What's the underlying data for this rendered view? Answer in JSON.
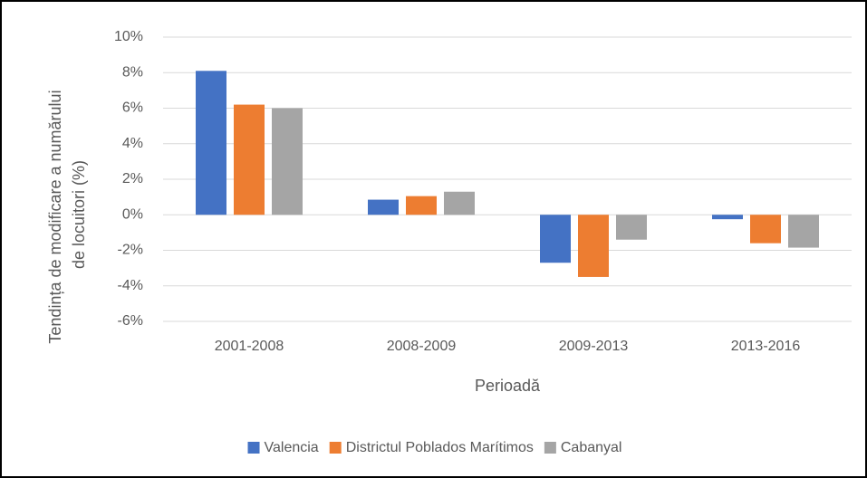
{
  "chart_data": {
    "type": "bar",
    "ylabel": [
      "Tendința de modificare a numărului",
      "de locuitori (%)"
    ],
    "xlabel": "Perioadă",
    "categories": [
      "2001-2008",
      "2008-2009",
      "2009-2013",
      "2013-2016"
    ],
    "series": [
      {
        "name": "Valencia",
        "color": "#4472c4",
        "values": [
          8.1,
          0.85,
          -2.7,
          -0.25
        ]
      },
      {
        "name": "Districtul Poblados Marítimos",
        "color": "#ed7d31",
        "values": [
          6.2,
          1.05,
          -3.5,
          -1.6
        ]
      },
      {
        "name": "Cabanyal",
        "color": "#a5a5a5",
        "values": [
          6.0,
          1.3,
          -1.4,
          -1.85
        ]
      }
    ],
    "ylim": [
      -6,
      10
    ],
    "yticks": [
      {
        "value": -6,
        "label": "-6%"
      },
      {
        "value": -4,
        "label": "-4%"
      },
      {
        "value": -2,
        "label": "-2%"
      },
      {
        "value": 0,
        "label": "0%"
      },
      {
        "value": 2,
        "label": "2%"
      },
      {
        "value": 4,
        "label": "4%"
      },
      {
        "value": 6,
        "label": "6%"
      },
      {
        "value": 8,
        "label": "8%"
      },
      {
        "value": 10,
        "label": "10%"
      }
    ],
    "grid": true,
    "legend": "bottom"
  }
}
